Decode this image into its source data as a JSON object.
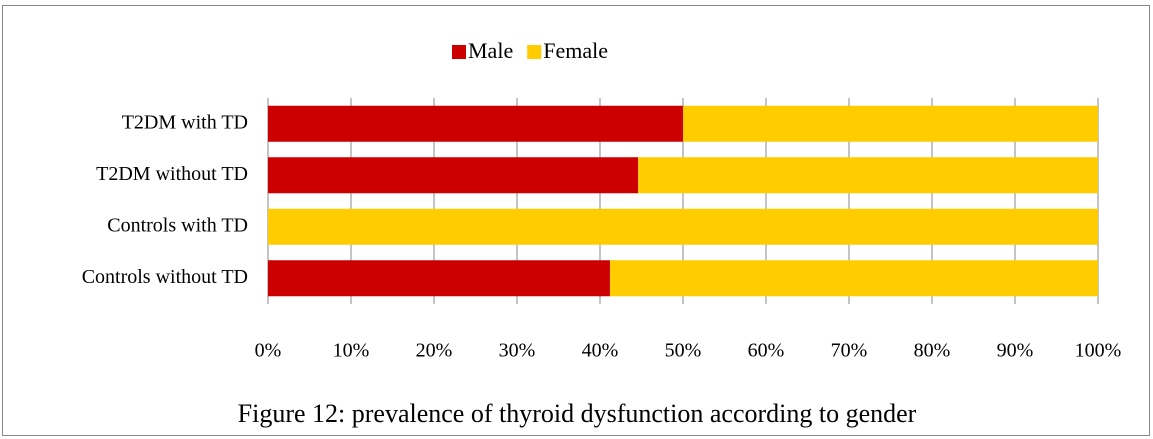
{
  "chart_data": {
    "type": "stacked-bar-horizontal",
    "title": "Figure 12: prevalence of thyroid dysfunction according to gender",
    "categories": [
      "T2DM with TD",
      "T2DM without TD",
      "Controls with TD",
      "Controls without TD"
    ],
    "series": [
      {
        "name": "Male",
        "color": "#cc0000",
        "values": [
          50,
          44.6,
          0,
          41.2
        ]
      },
      {
        "name": "Female",
        "color": "#ffcc00",
        "values": [
          50,
          55.4,
          100,
          58.8
        ]
      }
    ],
    "xlim": [
      0,
      100
    ],
    "xticks": [
      {
        "value": 0,
        "label": "0%"
      },
      {
        "value": 10,
        "label": "10%"
      },
      {
        "value": 20,
        "label": "20%"
      },
      {
        "value": 30,
        "label": "30%"
      },
      {
        "value": 40,
        "label": "40%"
      },
      {
        "value": 50,
        "label": "50%"
      },
      {
        "value": 60,
        "label": "60%"
      },
      {
        "value": 70,
        "label": "70%"
      },
      {
        "value": 80,
        "label": "80%"
      },
      {
        "value": 90,
        "label": "90%"
      },
      {
        "value": 100,
        "label": "100%"
      }
    ],
    "grid": true,
    "legend": "top"
  }
}
